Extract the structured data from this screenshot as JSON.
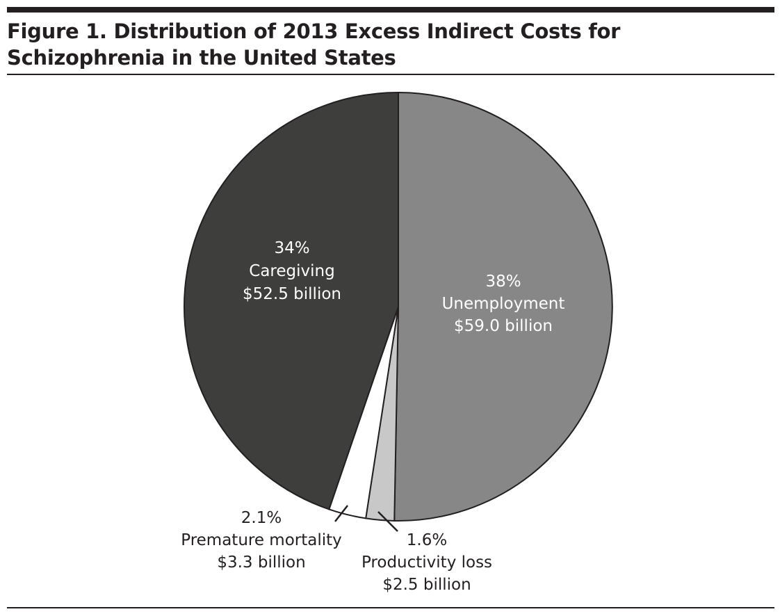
{
  "figure": {
    "title": "Figure 1. Distribution of 2013 Excess Indirect Costs for Schizophrenia in the United States"
  },
  "chart_data": {
    "type": "pie",
    "title": "Figure 1. Distribution of 2013 Excess Indirect Costs for Schizophrenia in the United States",
    "slices": [
      {
        "label": "Unemployment",
        "percent_text": "38%",
        "value_text": "$59.0 billion",
        "value": 59.0,
        "color": "#878787"
      },
      {
        "label": "Productivity loss",
        "percent_text": "1.6%",
        "value_text": "$2.5 billion",
        "value": 2.5,
        "color": "#c8c8c8"
      },
      {
        "label": "Premature mortality",
        "percent_text": "2.1%",
        "value_text": "$3.3 billion",
        "value": 3.3,
        "color": "#ffffff"
      },
      {
        "label": "Caregiving",
        "percent_text": "34%",
        "value_text": "$52.5 billion",
        "value": 52.5,
        "color": "#3e3e3d"
      }
    ],
    "start_angle_deg": 0,
    "direction": "clockwise"
  }
}
